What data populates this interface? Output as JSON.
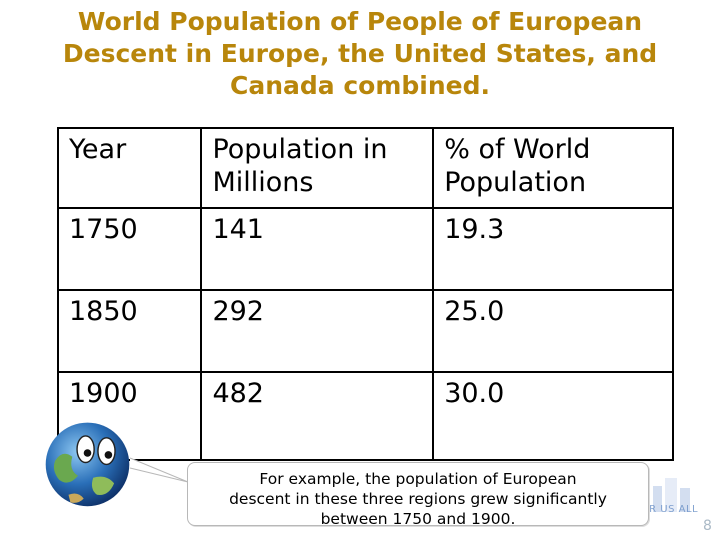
{
  "slide": {
    "title": "World Population of People of European Descent in Europe, the United States, and Canada combined.",
    "page_number": "8"
  },
  "table": {
    "headers": [
      {
        "line1": "Year",
        "line2": ""
      },
      {
        "line1": "Population in",
        "line2": "Millions"
      },
      {
        "line1": "% of World",
        "line2": "Population"
      }
    ],
    "rows": [
      [
        "1750",
        "141",
        "19.3"
      ],
      [
        "1850",
        "292",
        "25.0"
      ],
      [
        "1900",
        "482",
        "30.0"
      ]
    ]
  },
  "callout": {
    "line1": "For example, the population of European",
    "line2": "descent in these three regions grew significantly",
    "line3": "between 1750 and 1900."
  },
  "watermark": {
    "text": "WORLD HISTORY FOR US ALL"
  },
  "colors": {
    "title": "#b8860b",
    "table_border": "#000000",
    "callout_border": "#b8b8b8",
    "watermark": "#6e93c8"
  },
  "icons": [
    "globe-mascot-icon",
    "world-history-watermark-icon"
  ]
}
